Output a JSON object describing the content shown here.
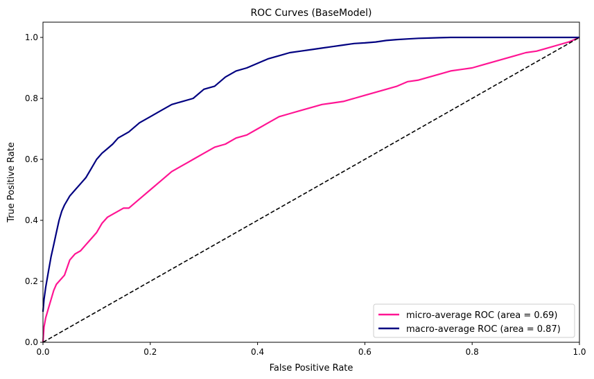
{
  "chart_data": {
    "type": "line",
    "title": "ROC Curves (BaseModel)",
    "xlabel": "False Positive Rate",
    "ylabel": "True Positive Rate",
    "xlim": [
      0.0,
      1.0
    ],
    "ylim": [
      0.0,
      1.05
    ],
    "x_ticks": [
      "0.0",
      "0.2",
      "0.4",
      "0.6",
      "0.8",
      "1.0"
    ],
    "y_ticks": [
      "0.0",
      "0.2",
      "0.4",
      "0.6",
      "0.8",
      "1.0"
    ],
    "grid": false,
    "legend_position": "lower-right",
    "series": [
      {
        "name": "micro-average ROC (area = 0.69)",
        "color": "#ff1493",
        "style": "solid",
        "x": [
          0.0,
          0.002,
          0.005,
          0.01,
          0.015,
          0.02,
          0.025,
          0.03,
          0.04,
          0.05,
          0.06,
          0.07,
          0.08,
          0.09,
          0.1,
          0.11,
          0.12,
          0.13,
          0.14,
          0.15,
          0.16,
          0.18,
          0.2,
          0.22,
          0.24,
          0.25,
          0.26,
          0.27,
          0.28,
          0.3,
          0.32,
          0.34,
          0.36,
          0.38,
          0.4,
          0.42,
          0.44,
          0.46,
          0.48,
          0.5,
          0.52,
          0.54,
          0.56,
          0.58,
          0.6,
          0.62,
          0.64,
          0.66,
          0.68,
          0.7,
          0.72,
          0.74,
          0.76,
          0.78,
          0.8,
          0.82,
          0.84,
          0.86,
          0.88,
          0.9,
          0.92,
          0.94,
          0.96,
          0.98,
          1.0
        ],
        "y": [
          0.0,
          0.05,
          0.08,
          0.11,
          0.14,
          0.17,
          0.19,
          0.2,
          0.22,
          0.27,
          0.29,
          0.3,
          0.32,
          0.34,
          0.36,
          0.39,
          0.41,
          0.42,
          0.43,
          0.44,
          0.44,
          0.47,
          0.5,
          0.53,
          0.56,
          0.57,
          0.58,
          0.59,
          0.6,
          0.62,
          0.64,
          0.65,
          0.67,
          0.68,
          0.7,
          0.72,
          0.74,
          0.75,
          0.76,
          0.77,
          0.78,
          0.785,
          0.79,
          0.8,
          0.81,
          0.82,
          0.83,
          0.84,
          0.855,
          0.86,
          0.87,
          0.88,
          0.89,
          0.895,
          0.9,
          0.91,
          0.92,
          0.93,
          0.94,
          0.95,
          0.955,
          0.965,
          0.975,
          0.985,
          1.0
        ]
      },
      {
        "name": "macro-average ROC (area = 0.87)",
        "color": "#000080",
        "style": "solid",
        "x": [
          0.0,
          0.002,
          0.005,
          0.01,
          0.015,
          0.02,
          0.025,
          0.03,
          0.035,
          0.04,
          0.05,
          0.06,
          0.07,
          0.08,
          0.09,
          0.1,
          0.11,
          0.12,
          0.13,
          0.14,
          0.16,
          0.18,
          0.2,
          0.22,
          0.24,
          0.26,
          0.28,
          0.3,
          0.32,
          0.34,
          0.36,
          0.38,
          0.4,
          0.42,
          0.44,
          0.46,
          0.48,
          0.5,
          0.52,
          0.54,
          0.56,
          0.58,
          0.6,
          0.62,
          0.64,
          0.66,
          0.68,
          0.7,
          0.72,
          0.74,
          0.76,
          0.78,
          0.8,
          0.85,
          0.9,
          0.95,
          1.0
        ],
        "y": [
          0.1,
          0.14,
          0.18,
          0.23,
          0.28,
          0.32,
          0.36,
          0.4,
          0.43,
          0.45,
          0.48,
          0.5,
          0.52,
          0.54,
          0.57,
          0.6,
          0.62,
          0.635,
          0.65,
          0.67,
          0.69,
          0.72,
          0.74,
          0.76,
          0.78,
          0.79,
          0.8,
          0.83,
          0.84,
          0.87,
          0.89,
          0.9,
          0.915,
          0.93,
          0.94,
          0.95,
          0.955,
          0.96,
          0.965,
          0.97,
          0.975,
          0.98,
          0.982,
          0.985,
          0.99,
          0.993,
          0.995,
          0.997,
          0.998,
          0.999,
          1.0,
          1.0,
          1.0,
          1.0,
          1.0,
          1.0,
          1.0
        ]
      },
      {
        "name": "",
        "color": "#000000",
        "style": "dashed",
        "x": [
          0.0,
          1.0
        ],
        "y": [
          0.0,
          1.0
        ]
      }
    ]
  }
}
